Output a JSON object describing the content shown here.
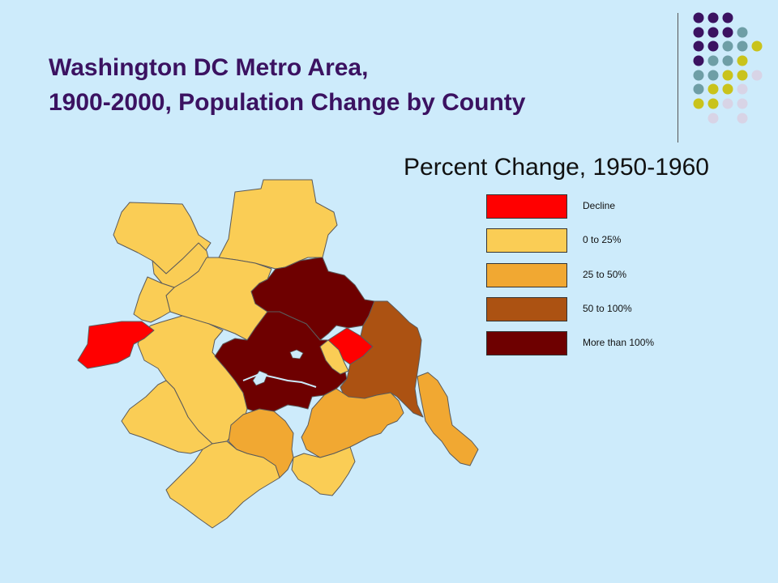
{
  "title": {
    "line1": "Washington DC Metro Area,",
    "line2": "1900-2000, Population Change by County"
  },
  "map_title": "Percent Change, 1950-1960",
  "legend": [
    {
      "label": "Decline",
      "color": "#ff0000"
    },
    {
      "label": "0 to 25%",
      "color": "#facd55"
    },
    {
      "label": "25 to 50%",
      "color": "#f1a832"
    },
    {
      "label": "50 to 100%",
      "color": "#ac5212"
    },
    {
      "label": "More than 100%",
      "color": "#6e0000"
    }
  ],
  "colors": {
    "background": "#cdebfb",
    "title": "#3b1261",
    "water": "#cdebfb",
    "decor_purple": "#3b1261",
    "decor_teal": "#6e9ea6",
    "decor_olive": "#c9c31c",
    "decor_lavender": "#d8d4e6"
  }
}
